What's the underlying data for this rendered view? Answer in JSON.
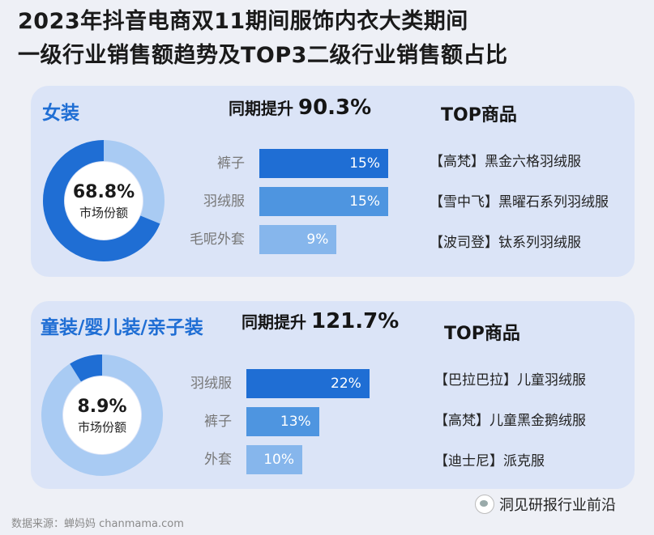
{
  "title_line1": "2023年抖音电商双11期间服饰内衣大类期间",
  "title_line2": "一级行业销售额趋势及TOP3二级行业销售额占比",
  "colors": {
    "dark": "#1f6ed4",
    "mid": "#4e95e0",
    "light": "#86b6ec",
    "ring_bg": "#a9cbf3"
  },
  "chart_data": [
    {
      "type": "bar",
      "category": "女装",
      "growth_label": "同期提升",
      "growth_value": "90.3%",
      "market_share": 68.8,
      "market_share_text": "68.8%",
      "market_share_label": "市场份额",
      "categories": [
        "裤子",
        "羽绒服",
        "毛呢外套"
      ],
      "values": [
        15,
        15,
        9
      ],
      "value_labels": [
        "15%",
        "15%",
        "9%"
      ],
      "top_title": "TOP商品",
      "top_items": [
        "【高梵】黑金六格羽绒服",
        "【雪中飞】黑曜石系列羽绒服",
        "【波司登】钛系列羽绒服"
      ]
    },
    {
      "type": "bar",
      "category": "童装/婴儿装/亲子装",
      "growth_label": "同期提升",
      "growth_value": "121.7%",
      "market_share": 8.9,
      "market_share_text": "8.9%",
      "market_share_label": "市场份额",
      "categories": [
        "羽绒服",
        "裤子",
        "外套"
      ],
      "values": [
        22,
        13,
        10
      ],
      "value_labels": [
        "22%",
        "13%",
        "10%"
      ],
      "top_title": "TOP商品",
      "top_items": [
        "【巴拉巴拉】儿童羽绒服",
        "【高梵】儿童黑金鹅绒服",
        "【迪士尼】派克服"
      ]
    }
  ],
  "footer_source": "数据来源：蝉妈妈 chanmama.com",
  "watermark": "洞见研报行业前沿"
}
